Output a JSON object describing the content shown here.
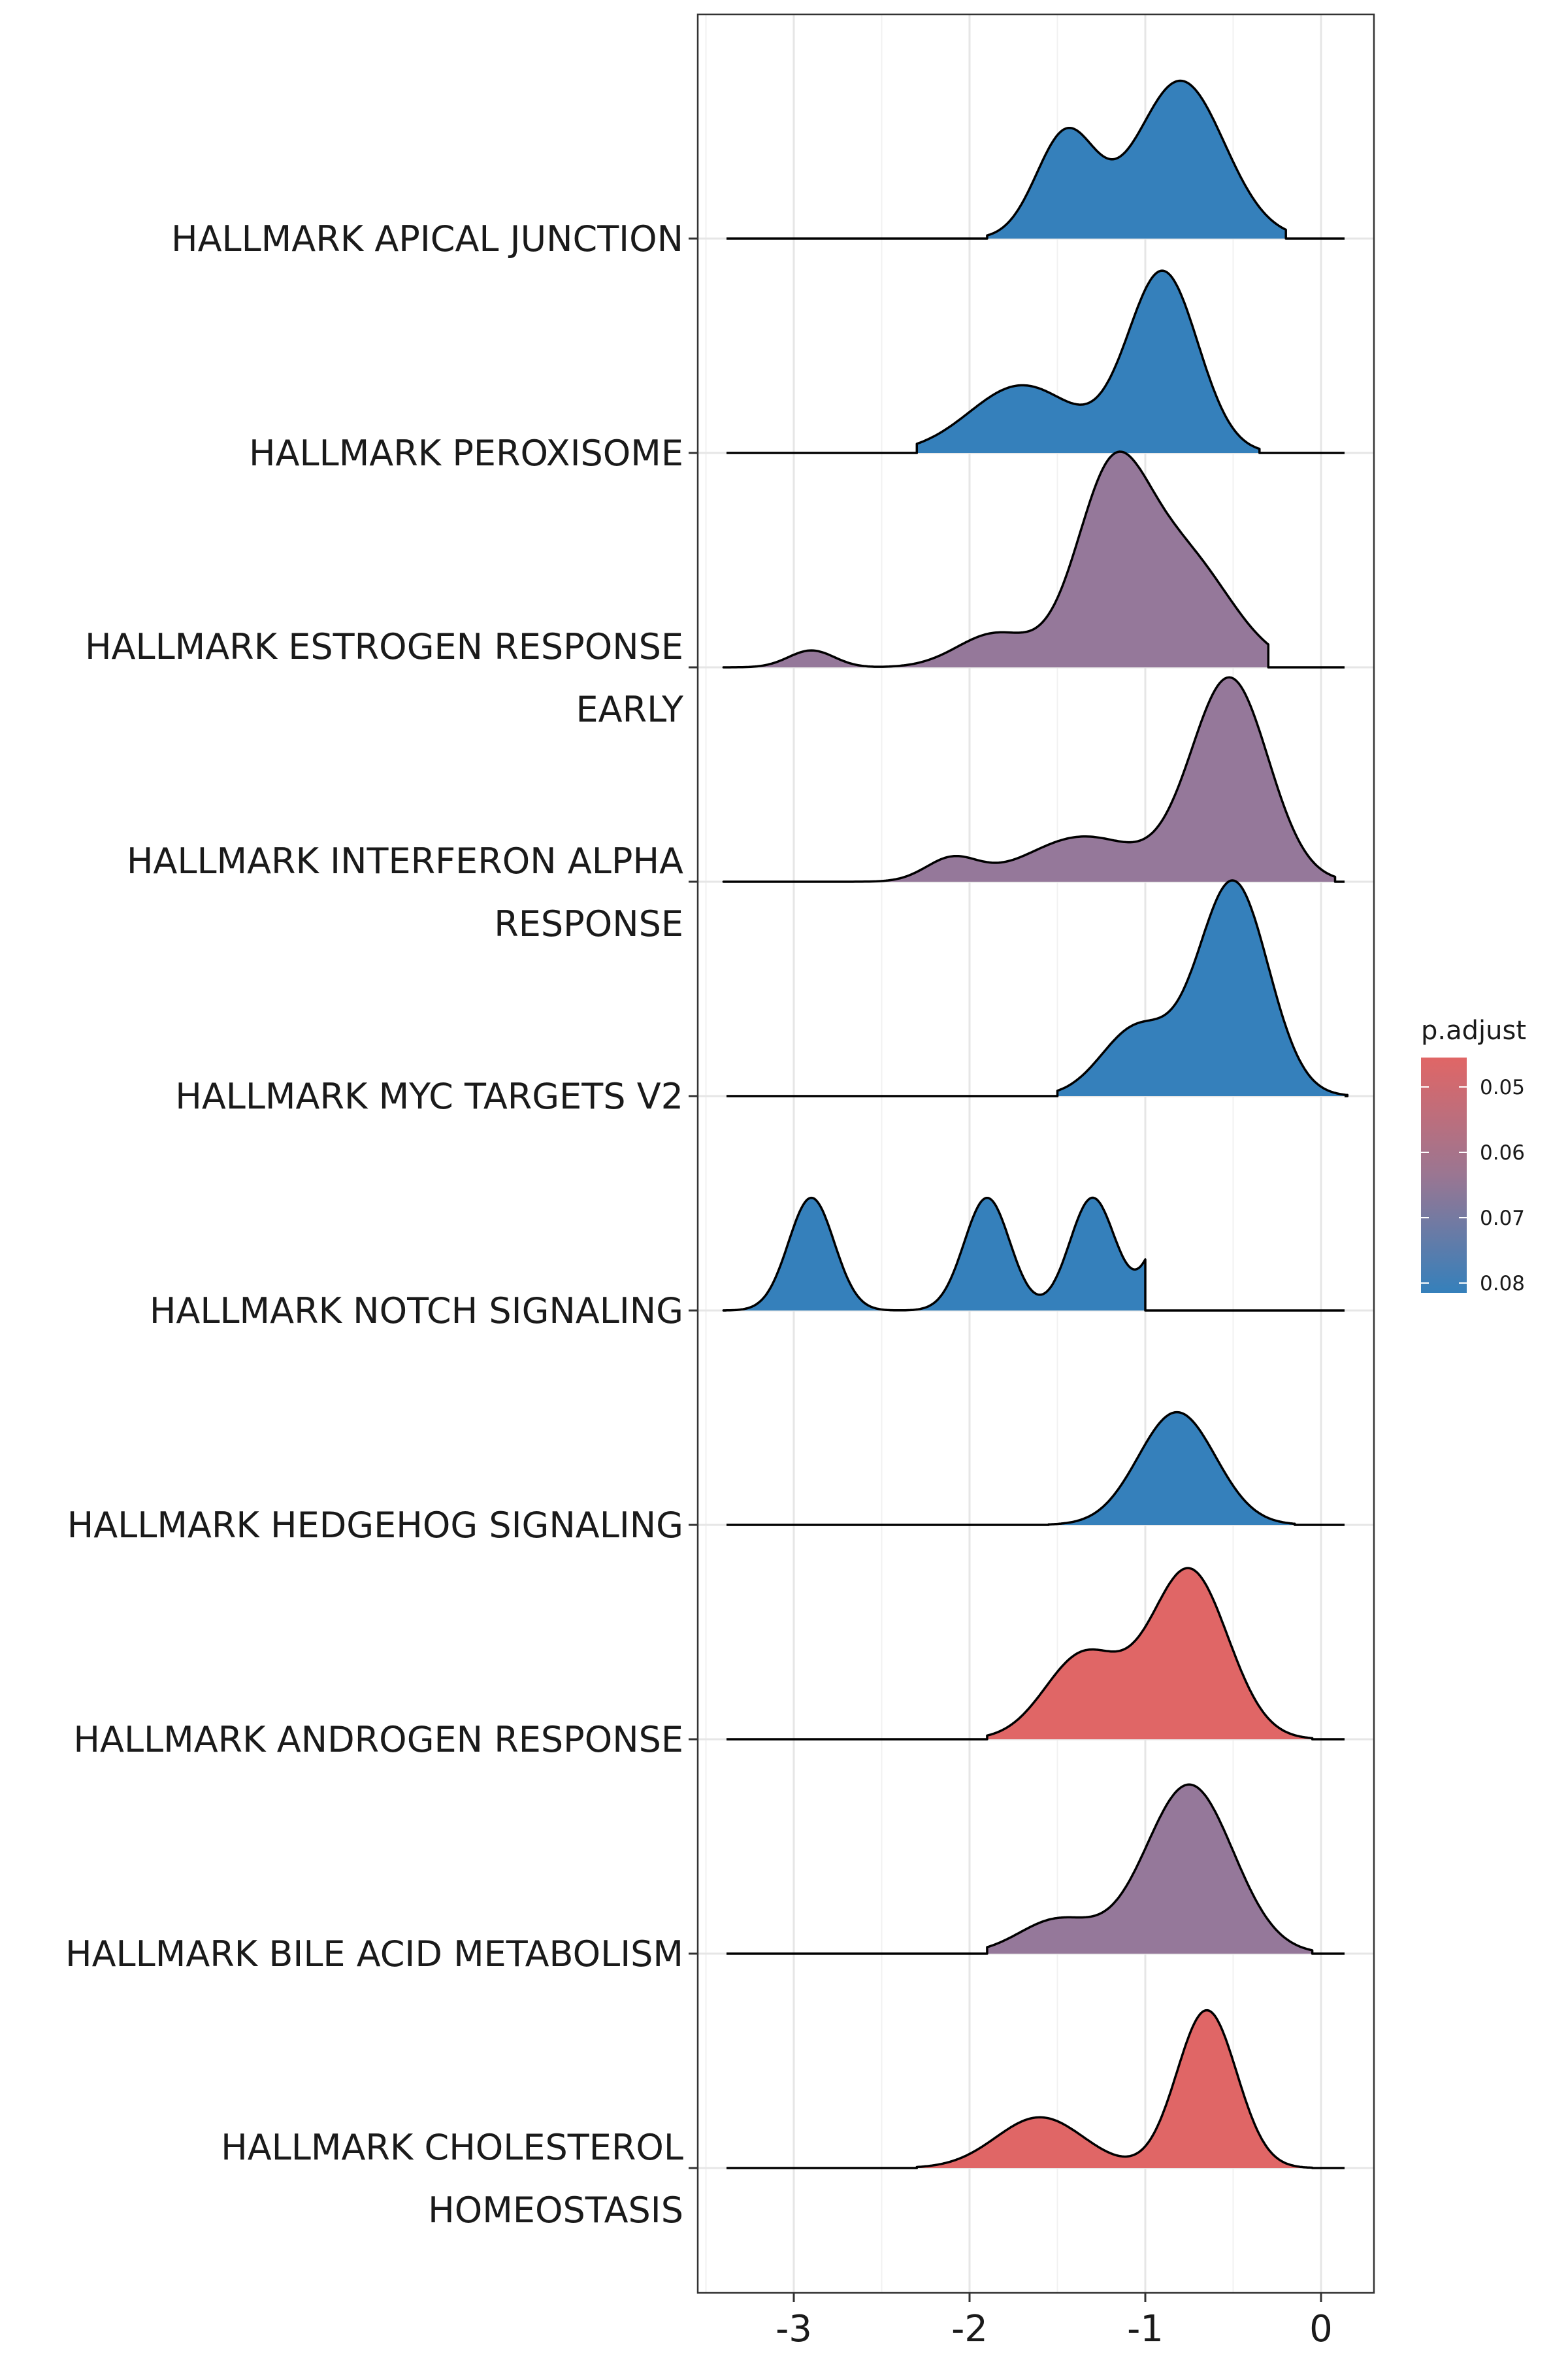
{
  "chart_data": {
    "type": "ridgeline",
    "xlim": [
      -3.5,
      0.3
    ],
    "x_ticks": [
      -3,
      -2,
      -1,
      0
    ],
    "x_tick_labels": [
      "-3",
      "-2",
      "-1",
      "0"
    ],
    "grid": true,
    "legend": {
      "title": "p.adjust",
      "placement": "right",
      "min": 0.0455,
      "max": 0.0815,
      "ticks": [
        0.05,
        0.06,
        0.07,
        0.08
      ],
      "tick_labels": [
        "0.05",
        "0.06",
        "0.07",
        "0.08"
      ],
      "low_color": "#e06666",
      "high_color": "#3580bb"
    },
    "series": [
      {
        "label_lines": [
          "HALLMARK APICAL JUNCTION"
        ],
        "p_adjust": 0.08,
        "color": "#3580bb",
        "range": [
          -1.9,
          -0.2
        ],
        "components": [
          {
            "mu": -1.45,
            "sd": 0.17,
            "w": 0.93
          },
          {
            "mu": -0.8,
            "sd": 0.25,
            "w": 1.4
          }
        ]
      },
      {
        "label_lines": [
          "HALLMARK PEROXISOME"
        ],
        "p_adjust": 0.08,
        "color": "#3580bb",
        "range": [
          -2.3,
          -0.35
        ],
        "components": [
          {
            "mu": -1.7,
            "sd": 0.3,
            "w": 0.6
          },
          {
            "mu": -0.9,
            "sd": 0.2,
            "w": 1.6
          }
        ]
      },
      {
        "label_lines": [
          "HALLMARK ESTROGEN RESPONSE",
          "EARLY"
        ],
        "p_adjust": 0.067,
        "color": "#95789a",
        "range": [
          -3.4,
          -0.3
        ],
        "components": [
          {
            "mu": -2.9,
            "sd": 0.13,
            "w": 0.15
          },
          {
            "mu": -1.85,
            "sd": 0.22,
            "w": 0.3
          },
          {
            "mu": -1.2,
            "sd": 0.2,
            "w": 1.5
          },
          {
            "mu": -0.8,
            "sd": 0.28,
            "w": 1.0
          }
        ]
      },
      {
        "label_lines": [
          "HALLMARK INTERFERON ALPHA",
          "RESPONSE"
        ],
        "p_adjust": 0.067,
        "color": "#95789a",
        "range": [
          -3.4,
          0.08
        ],
        "components": [
          {
            "mu": -2.1,
            "sd": 0.15,
            "w": 0.2
          },
          {
            "mu": -1.35,
            "sd": 0.32,
            "w": 0.4
          },
          {
            "mu": -0.52,
            "sd": 0.22,
            "w": 1.8
          }
        ]
      },
      {
        "label_lines": [
          "HALLMARK MYC TARGETS V2"
        ],
        "p_adjust": 0.08,
        "color": "#3580bb",
        "range": [
          -1.5,
          0.15
        ],
        "components": [
          {
            "mu": -1.05,
            "sd": 0.2,
            "w": 0.6
          },
          {
            "mu": -0.5,
            "sd": 0.2,
            "w": 1.9
          }
        ]
      },
      {
        "label_lines": [
          "HALLMARK NOTCH SIGNALING"
        ],
        "p_adjust": 0.08,
        "color": "#3580bb",
        "range": [
          -3.4,
          -1.0
        ],
        "components": [
          {
            "mu": -2.9,
            "sd": 0.13,
            "w": 1.0
          },
          {
            "mu": -1.9,
            "sd": 0.13,
            "w": 1.0
          },
          {
            "mu": -1.3,
            "sd": 0.13,
            "w": 1.0
          },
          {
            "mu": -0.82,
            "sd": 0.13,
            "w": 1.0
          }
        ]
      },
      {
        "label_lines": [
          "HALLMARK HEDGEHOG SIGNALING"
        ],
        "p_adjust": 0.08,
        "color": "#3580bb",
        "range": [
          -1.55,
          -0.15
        ],
        "components": [
          {
            "mu": -0.82,
            "sd": 0.22,
            "w": 1.0
          }
        ]
      },
      {
        "label_lines": [
          "HALLMARK ANDROGEN RESPONSE"
        ],
        "p_adjust": 0.046,
        "color": "#e06666",
        "range": [
          -1.9,
          -0.05
        ],
        "components": [
          {
            "mu": -1.35,
            "sd": 0.22,
            "w": 0.75
          },
          {
            "mu": -0.75,
            "sd": 0.22,
            "w": 1.5
          }
        ]
      },
      {
        "label_lines": [
          "HALLMARK BILE ACID METABOLISM"
        ],
        "p_adjust": 0.067,
        "color": "#95789a",
        "range": [
          -1.9,
          -0.05
        ],
        "components": [
          {
            "mu": -1.5,
            "sd": 0.22,
            "w": 0.3
          },
          {
            "mu": -0.75,
            "sd": 0.25,
            "w": 1.5
          }
        ]
      },
      {
        "label_lines": [
          "HALLMARK CHOLESTEROL",
          "HOMEOSTASIS"
        ],
        "p_adjust": 0.046,
        "color": "#e06666",
        "range": [
          -2.3,
          -0.05
        ],
        "components": [
          {
            "mu": -1.6,
            "sd": 0.25,
            "w": 0.45
          },
          {
            "mu": -0.65,
            "sd": 0.17,
            "w": 1.4
          }
        ]
      }
    ]
  }
}
